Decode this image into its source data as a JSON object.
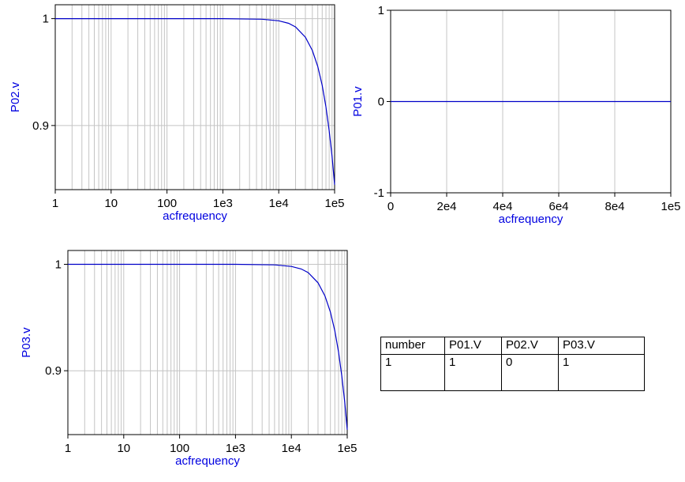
{
  "colors": {
    "curve": "#0000c8",
    "grid": "#c4c4c4",
    "label": "#0000e0"
  },
  "chart_data": [
    {
      "type": "line",
      "id": "p02",
      "xlabel": "acfrequency",
      "ylabel": "P02.v",
      "xscale": "log",
      "xlim": [
        1,
        100000
      ],
      "ylim": [
        0.84,
        1.013
      ],
      "xticks": [
        {
          "v": 1,
          "label": "1"
        },
        {
          "v": 10,
          "label": "10"
        },
        {
          "v": 100,
          "label": "100"
        },
        {
          "v": 1000,
          "label": "1e3"
        },
        {
          "v": 10000,
          "label": "1e4"
        },
        {
          "v": 100000,
          "label": "1e5"
        }
      ],
      "yticks": [
        {
          "v": 0.9,
          "label": "0.9"
        },
        {
          "v": 1,
          "label": "1"
        }
      ],
      "grid": true,
      "series": [
        {
          "x": [
            1,
            1000,
            5000,
            10000,
            15000,
            20000,
            30000,
            40000,
            50000,
            60000,
            70000,
            80000,
            90000,
            100000
          ],
          "y": [
            1,
            1,
            0.9995,
            0.998,
            0.9956,
            0.9922,
            0.9826,
            0.9702,
            0.9551,
            0.9375,
            0.9175,
            0.8952,
            0.8709,
            0.8446
          ]
        }
      ]
    },
    {
      "type": "line",
      "id": "p01",
      "xlabel": "acfrequency",
      "ylabel": "P01.v",
      "xscale": "linear",
      "xlim": [
        0,
        100000
      ],
      "ylim": [
        -1,
        1
      ],
      "xticks": [
        {
          "v": 0,
          "label": "0"
        },
        {
          "v": 20000,
          "label": "2e4"
        },
        {
          "v": 40000,
          "label": "4e4"
        },
        {
          "v": 60000,
          "label": "6e4"
        },
        {
          "v": 80000,
          "label": "8e4"
        },
        {
          "v": 100000,
          "label": "1e5"
        }
      ],
      "yticks": [
        {
          "v": -1,
          "label": "-1"
        },
        {
          "v": 0,
          "label": "0"
        },
        {
          "v": 1,
          "label": "1"
        }
      ],
      "grid": true,
      "series": [
        {
          "x": [
            0,
            100000
          ],
          "y": [
            0,
            0
          ]
        }
      ]
    },
    {
      "type": "line",
      "id": "p03",
      "xlabel": "acfrequency",
      "ylabel": "P03.v",
      "xscale": "log",
      "xlim": [
        1,
        100000
      ],
      "ylim": [
        0.84,
        1.013
      ],
      "xticks": [
        {
          "v": 1,
          "label": "1"
        },
        {
          "v": 10,
          "label": "10"
        },
        {
          "v": 100,
          "label": "100"
        },
        {
          "v": 1000,
          "label": "1e3"
        },
        {
          "v": 10000,
          "label": "1e4"
        },
        {
          "v": 100000,
          "label": "1e5"
        }
      ],
      "yticks": [
        {
          "v": 0.9,
          "label": "0.9"
        },
        {
          "v": 1,
          "label": "1"
        }
      ],
      "grid": true,
      "series": [
        {
          "x": [
            1,
            1000,
            5000,
            10000,
            15000,
            20000,
            30000,
            40000,
            50000,
            60000,
            70000,
            80000,
            90000,
            100000
          ],
          "y": [
            1,
            1,
            0.9995,
            0.998,
            0.9956,
            0.9922,
            0.9826,
            0.9702,
            0.9551,
            0.9375,
            0.9175,
            0.8952,
            0.8709,
            0.8446
          ]
        }
      ]
    },
    {
      "type": "table",
      "id": "results",
      "columns": [
        "number",
        "P01.V",
        "P02.V",
        "P03.V"
      ],
      "rows": [
        [
          "1",
          "1",
          "0",
          "1"
        ]
      ]
    }
  ]
}
